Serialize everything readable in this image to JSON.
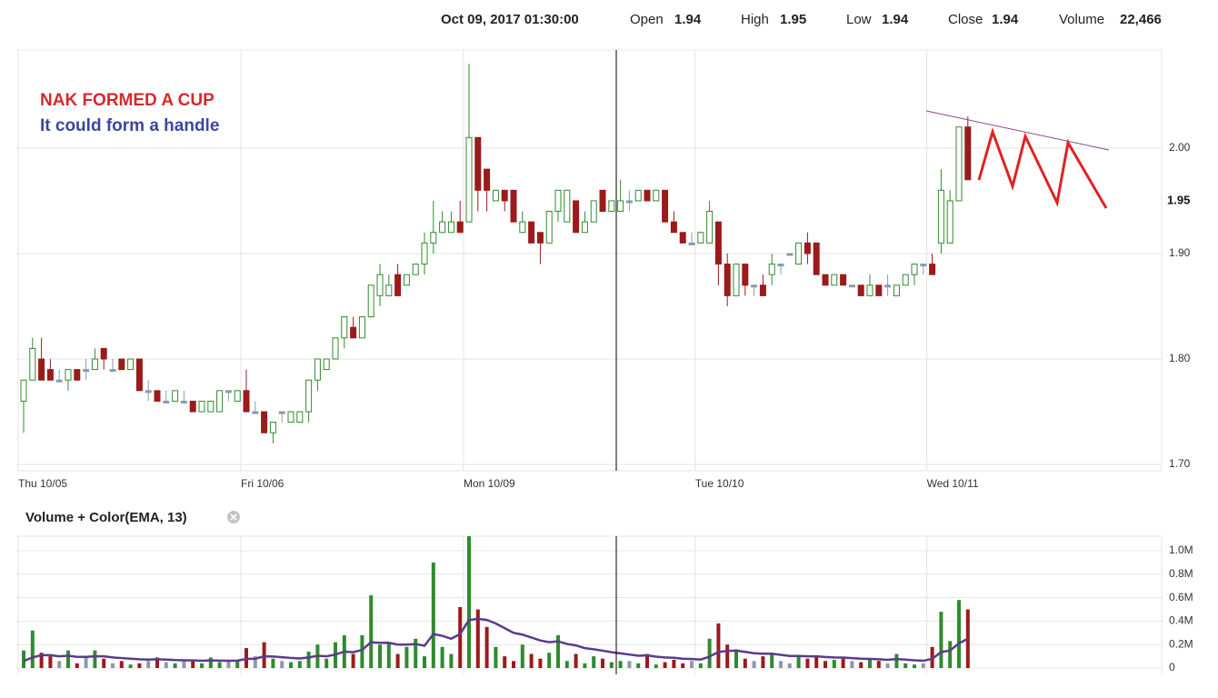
{
  "header": {
    "date": "Oct 09, 2017 01:30:00",
    "fields": [
      {
        "label": "Open",
        "value": "1.94"
      },
      {
        "label": "High",
        "value": "1.95"
      },
      {
        "label": "Low",
        "value": "1.94"
      },
      {
        "label": "Close",
        "value": "1.94"
      },
      {
        "label": "Volume",
        "value": "22,466"
      }
    ]
  },
  "chart_data": [
    {
      "type": "candlestick",
      "annotations": [
        "NAK FORMED A CUP",
        "It could form a handle"
      ],
      "categories": [
        "Thu 10/05",
        null,
        null,
        null,
        null,
        null,
        null,
        null,
        null,
        null,
        null,
        null,
        null,
        null,
        null,
        null,
        null,
        null,
        null,
        null,
        null,
        null,
        null,
        null,
        null,
        "Fri 10/06",
        null,
        null,
        null,
        null,
        null,
        null,
        null,
        null,
        null,
        null,
        null,
        null,
        null,
        null,
        null,
        null,
        null,
        null,
        null,
        null,
        null,
        null,
        null,
        null,
        "Mon 10/09",
        null,
        null,
        null,
        null,
        null,
        null,
        null,
        null,
        null,
        null,
        null,
        null,
        null,
        null,
        null,
        null,
        null,
        null,
        null,
        null,
        null,
        null,
        null,
        null,
        null,
        "Tue 10/10",
        null,
        null,
        null,
        null,
        null,
        null,
        null,
        null,
        null,
        null,
        null,
        null,
        null,
        null,
        null,
        null,
        null,
        null,
        null,
        null,
        null,
        null,
        null,
        null,
        null,
        "Wed 10/11",
        null,
        null,
        null,
        null
      ],
      "open": [
        1.76,
        1.78,
        1.8,
        1.79,
        1.78,
        1.78,
        1.79,
        1.79,
        1.79,
        1.81,
        1.79,
        1.8,
        1.79,
        1.8,
        1.77,
        1.77,
        1.76,
        1.76,
        1.76,
        1.76,
        1.75,
        1.75,
        1.75,
        1.77,
        1.76,
        1.77,
        1.75,
        1.75,
        1.73,
        1.75,
        1.74,
        1.74,
        1.75,
        1.78,
        1.79,
        1.8,
        1.82,
        1.83,
        1.82,
        1.84,
        1.86,
        1.86,
        1.88,
        1.87,
        1.88,
        1.89,
        1.91,
        1.92,
        1.92,
        1.93,
        1.93,
        2.01,
        1.98,
        1.95,
        1.96,
        1.96,
        1.92,
        1.93,
        1.92,
        1.91,
        1.94,
        1.93,
        1.95,
        1.92,
        1.93,
        1.96,
        1.94,
        1.94,
        1.95,
        1.95,
        1.96,
        1.95,
        1.96,
        1.93,
        1.92,
        1.91,
        1.91,
        1.91,
        1.93,
        1.89,
        1.86,
        1.89,
        1.87,
        1.87,
        1.88,
        1.89,
        1.9,
        1.89,
        1.91,
        1.91,
        1.88,
        1.87,
        1.88,
        1.87,
        1.87,
        1.86,
        1.87,
        1.87,
        1.86,
        1.87,
        1.88,
        1.89,
        1.89,
        1.91,
        1.91,
        1.95,
        2.02
      ],
      "high": [
        1.78,
        1.82,
        1.82,
        1.8,
        1.79,
        1.79,
        1.79,
        1.8,
        1.81,
        1.81,
        1.8,
        1.8,
        1.8,
        1.8,
        1.78,
        1.77,
        1.77,
        1.77,
        1.77,
        1.76,
        1.76,
        1.76,
        1.77,
        1.77,
        1.77,
        1.79,
        1.76,
        1.75,
        1.74,
        1.75,
        1.75,
        1.75,
        1.78,
        1.8,
        1.8,
        1.82,
        1.84,
        1.84,
        1.84,
        1.87,
        1.89,
        1.88,
        1.89,
        1.88,
        1.89,
        1.92,
        1.95,
        1.94,
        1.94,
        1.95,
        2.08,
        2.01,
        1.98,
        1.96,
        1.96,
        1.96,
        1.94,
        1.93,
        1.92,
        1.94,
        1.96,
        1.96,
        1.95,
        1.94,
        1.95,
        1.96,
        1.95,
        1.97,
        1.96,
        1.96,
        1.96,
        1.96,
        1.96,
        1.94,
        1.92,
        1.92,
        1.92,
        1.95,
        1.93,
        1.9,
        1.89,
        1.89,
        1.87,
        1.88,
        1.9,
        1.89,
        1.9,
        1.91,
        1.92,
        1.91,
        1.88,
        1.88,
        1.88,
        1.87,
        1.87,
        1.88,
        1.87,
        1.88,
        1.87,
        1.88,
        1.89,
        1.89,
        1.9,
        1.98,
        1.96,
        2.02,
        2.03
      ],
      "low": [
        1.73,
        1.78,
        1.78,
        1.78,
        1.78,
        1.77,
        1.78,
        1.78,
        1.79,
        1.79,
        1.79,
        1.79,
        1.79,
        1.77,
        1.76,
        1.76,
        1.76,
        1.76,
        1.76,
        1.75,
        1.75,
        1.75,
        1.75,
        1.76,
        1.76,
        1.75,
        1.75,
        1.73,
        1.72,
        1.74,
        1.74,
        1.74,
        1.74,
        1.77,
        1.79,
        1.8,
        1.81,
        1.82,
        1.82,
        1.84,
        1.85,
        1.86,
        1.86,
        1.87,
        1.88,
        1.88,
        1.9,
        1.92,
        1.92,
        1.92,
        1.93,
        1.94,
        1.94,
        1.95,
        1.94,
        1.93,
        1.92,
        1.91,
        1.89,
        1.91,
        1.93,
        1.93,
        1.92,
        1.92,
        1.93,
        1.94,
        1.94,
        1.94,
        1.94,
        1.95,
        1.95,
        1.95,
        1.93,
        1.92,
        1.91,
        1.91,
        1.91,
        1.91,
        1.87,
        1.85,
        1.86,
        1.86,
        1.86,
        1.86,
        1.87,
        1.88,
        1.9,
        1.89,
        1.89,
        1.88,
        1.87,
        1.87,
        1.87,
        1.87,
        1.86,
        1.86,
        1.86,
        1.86,
        1.86,
        1.87,
        1.87,
        1.88,
        1.88,
        1.9,
        1.91,
        1.95,
        1.97
      ],
      "close": [
        1.78,
        1.81,
        1.78,
        1.78,
        1.78,
        1.79,
        1.78,
        1.79,
        1.8,
        1.8,
        1.79,
        1.79,
        1.8,
        1.77,
        1.77,
        1.76,
        1.76,
        1.77,
        1.76,
        1.75,
        1.76,
        1.76,
        1.77,
        1.77,
        1.77,
        1.75,
        1.75,
        1.73,
        1.74,
        1.75,
        1.75,
        1.75,
        1.78,
        1.8,
        1.8,
        1.82,
        1.84,
        1.82,
        1.84,
        1.87,
        1.88,
        1.87,
        1.86,
        1.88,
        1.89,
        1.91,
        1.92,
        1.93,
        1.93,
        1.92,
        2.01,
        1.96,
        1.96,
        1.96,
        1.95,
        1.93,
        1.93,
        1.91,
        1.91,
        1.94,
        1.96,
        1.96,
        1.92,
        1.93,
        1.95,
        1.94,
        1.95,
        1.95,
        1.95,
        1.96,
        1.95,
        1.96,
        1.93,
        1.92,
        1.91,
        1.91,
        1.92,
        1.94,
        1.89,
        1.86,
        1.89,
        1.87,
        1.87,
        1.86,
        1.89,
        1.89,
        1.9,
        1.91,
        1.9,
        1.88,
        1.87,
        1.88,
        1.87,
        1.87,
        1.86,
        1.87,
        1.86,
        1.87,
        1.87,
        1.88,
        1.89,
        1.89,
        1.88,
        1.96,
        1.95,
        2.02,
        1.97
      ],
      "colors": {
        "up": "#2f8a2f",
        "down": "#9a1b1b",
        "flat": "#8c99aa"
      },
      "current_price": 1.95,
      "ylim": [
        1.694,
        2.093
      ],
      "yticks": [
        {
          "value": 1.7,
          "label": "1.70"
        },
        {
          "value": 1.8,
          "label": "1.80"
        },
        {
          "value": 1.9,
          "label": "1.90"
        },
        {
          "value": 2.0,
          "label": "2.00"
        }
      ],
      "grid": true
    },
    {
      "type": "bar",
      "title": "Volume + Color(EMA, 13)",
      "values": [
        150000,
        320000,
        130000,
        100000,
        60000,
        150000,
        40000,
        100000,
        150000,
        80000,
        40000,
        60000,
        30000,
        40000,
        60000,
        90000,
        50000,
        40000,
        60000,
        60000,
        40000,
        90000,
        50000,
        60000,
        70000,
        170000,
        100000,
        220000,
        80000,
        60000,
        50000,
        60000,
        140000,
        200000,
        80000,
        220000,
        280000,
        120000,
        280000,
        620000,
        200000,
        220000,
        120000,
        180000,
        250000,
        100000,
        900000,
        180000,
        120000,
        520000,
        1124000,
        500000,
        350000,
        180000,
        100000,
        60000,
        200000,
        120000,
        80000,
        130000,
        280000,
        60000,
        120000,
        40000,
        100000,
        80000,
        50000,
        60000,
        60000,
        40000,
        120000,
        30000,
        50000,
        70000,
        40000,
        60000,
        40000,
        250000,
        380000,
        200000,
        160000,
        80000,
        60000,
        100000,
        120000,
        60000,
        40000,
        100000,
        80000,
        100000,
        60000,
        70000,
        80000,
        60000,
        50000,
        70000,
        60000,
        40000,
        120000,
        40000,
        30000,
        40000,
        180000,
        480000,
        230000,
        580000,
        500000
      ],
      "ema": [
        60000,
        90000,
        110000,
        110000,
        100000,
        105000,
        95000,
        95000,
        100000,
        100000,
        90000,
        85000,
        80000,
        75000,
        72000,
        75000,
        72000,
        68000,
        66000,
        65000,
        62000,
        65000,
        63000,
        62000,
        63000,
        78000,
        80000,
        100000,
        98000,
        92000,
        86000,
        82000,
        90000,
        105000,
        100000,
        115000,
        140000,
        135000,
        155000,
        220000,
        215000,
        215000,
        200000,
        200000,
        205000,
        190000,
        290000,
        275000,
        250000,
        290000,
        410000,
        420000,
        410000,
        380000,
        340000,
        300000,
        285000,
        260000,
        235000,
        220000,
        228000,
        205000,
        193000,
        170000,
        160000,
        148000,
        135000,
        125000,
        115000,
        105000,
        108000,
        97000,
        90000,
        87000,
        80000,
        77000,
        72000,
        97000,
        137000,
        146000,
        148000,
        138000,
        126000,
        122000,
        122000,
        113000,
        103000,
        103000,
        100000,
        100000,
        94000,
        90000,
        89000,
        85000,
        80000,
        78000,
        75000,
        70000,
        77000,
        72000,
        66000,
        62000,
        79000,
        136000,
        150000,
        210000,
        250000
      ],
      "ema_color": "#5a3b8c",
      "ylim": [
        -54000,
        1124000
      ],
      "yticks": [
        0,
        {
          "value": 200000,
          "label": "0.2M"
        },
        {
          "value": 400000,
          "label": "0.4M"
        },
        {
          "value": 600000,
          "label": "0.6M"
        },
        {
          "value": 800000,
          "label": "0.8M"
        },
        {
          "value": 1000000,
          "label": "1.0M"
        }
      ],
      "grid": true
    }
  ]
}
